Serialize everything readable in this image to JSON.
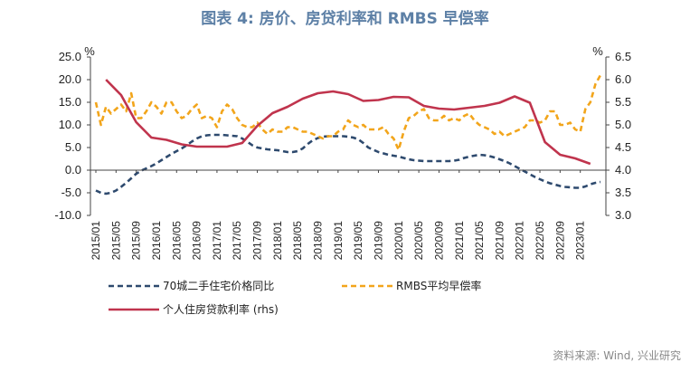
{
  "chart_data": {
    "type": "line",
    "title": "图表 4:  房价、房贷利率和 RMBS 早偿率",
    "source": "资料来源: Wind, 兴业研究",
    "left_unit": "%",
    "right_unit": "%",
    "ylim_left": [
      -10,
      25
    ],
    "ylim_right": [
      3.0,
      6.5
    ],
    "yticks_left": [
      "25.0",
      "20.0",
      "15.0",
      "10.0",
      "5.0",
      "0.0",
      "-5.0",
      "-10.0"
    ],
    "yticks_right": [
      "6.5",
      "6.0",
      "5.5",
      "5.0",
      "4.5",
      "4.0",
      "3.5",
      "3.0"
    ],
    "x_start": "2015-01",
    "x_end": "2023-05",
    "x_ticks": [
      "2015/01",
      "2015/05",
      "2015/09",
      "2016/01",
      "2016/05",
      "2016/09",
      "2017/01",
      "2017/05",
      "2017/09",
      "2018/01",
      "2018/05",
      "2018/09",
      "2019/01",
      "2019/05",
      "2019/09",
      "2020/01",
      "2020/05",
      "2020/09",
      "2021/01",
      "2021/05",
      "2021/09",
      "2022/01",
      "2022/05",
      "2022/09",
      "2023/01"
    ],
    "series": [
      {
        "name": "70城二手住宅价格同比",
        "axis": "left",
        "style": "dashed",
        "color": "#2e4a6e",
        "points": [
          [
            "2015-01",
            -4.5
          ],
          [
            "2015-02",
            -5.0
          ],
          [
            "2015-03",
            -5.2
          ],
          [
            "2015-04",
            -5.0
          ],
          [
            "2015-05",
            -4.5
          ],
          [
            "2015-06",
            -3.7
          ],
          [
            "2015-07",
            -2.8
          ],
          [
            "2015-08",
            -1.8
          ],
          [
            "2015-09",
            -0.8
          ],
          [
            "2015-10",
            -0.1
          ],
          [
            "2015-11",
            0.4
          ],
          [
            "2015-12",
            0.9
          ],
          [
            "2016-01",
            1.5
          ],
          [
            "2016-02",
            2.2
          ],
          [
            "2016-03",
            2.9
          ],
          [
            "2016-04",
            3.6
          ],
          [
            "2016-05",
            4.2
          ],
          [
            "2016-06",
            4.8
          ],
          [
            "2016-07",
            5.5
          ],
          [
            "2016-08",
            6.3
          ],
          [
            "2016-09",
            7.0
          ],
          [
            "2016-10",
            7.5
          ],
          [
            "2016-11",
            7.7
          ],
          [
            "2016-12",
            7.8
          ],
          [
            "2017-01",
            7.8
          ],
          [
            "2017-02",
            7.8
          ],
          [
            "2017-03",
            7.7
          ],
          [
            "2017-04",
            7.6
          ],
          [
            "2017-05",
            7.5
          ],
          [
            "2017-06",
            7.0
          ],
          [
            "2017-07",
            6.3
          ],
          [
            "2017-08",
            5.5
          ],
          [
            "2017-09",
            5.0
          ],
          [
            "2017-10",
            4.8
          ],
          [
            "2017-11",
            4.6
          ],
          [
            "2017-12",
            4.5
          ],
          [
            "2018-01",
            4.4
          ],
          [
            "2018-02",
            4.2
          ],
          [
            "2018-03",
            4.0
          ],
          [
            "2018-04",
            4.0
          ],
          [
            "2018-05",
            4.2
          ],
          [
            "2018-06",
            4.8
          ],
          [
            "2018-07",
            5.8
          ],
          [
            "2018-08",
            6.6
          ],
          [
            "2018-09",
            7.1
          ],
          [
            "2018-10",
            7.4
          ],
          [
            "2018-11",
            7.5
          ],
          [
            "2018-12",
            7.5
          ],
          [
            "2019-01",
            7.5
          ],
          [
            "2019-02",
            7.5
          ],
          [
            "2019-03",
            7.4
          ],
          [
            "2019-04",
            7.2
          ],
          [
            "2019-05",
            6.8
          ],
          [
            "2019-06",
            6.0
          ],
          [
            "2019-07",
            5.0
          ],
          [
            "2019-08",
            4.5
          ],
          [
            "2019-09",
            4.0
          ],
          [
            "2019-10",
            3.7
          ],
          [
            "2019-11",
            3.4
          ],
          [
            "2019-12",
            3.2
          ],
          [
            "2020-01",
            3.0
          ],
          [
            "2020-02",
            2.7
          ],
          [
            "2020-03",
            2.4
          ],
          [
            "2020-04",
            2.2
          ],
          [
            "2020-05",
            2.1
          ],
          [
            "2020-06",
            2.0
          ],
          [
            "2020-07",
            2.0
          ],
          [
            "2020-08",
            2.0
          ],
          [
            "2020-09",
            2.0
          ],
          [
            "2020-10",
            2.0
          ],
          [
            "2020-11",
            2.0
          ],
          [
            "2020-12",
            2.1
          ],
          [
            "2021-01",
            2.3
          ],
          [
            "2021-02",
            2.7
          ],
          [
            "2021-03",
            3.0
          ],
          [
            "2021-04",
            3.2
          ],
          [
            "2021-05",
            3.4
          ],
          [
            "2021-06",
            3.3
          ],
          [
            "2021-07",
            3.1
          ],
          [
            "2021-08",
            2.8
          ],
          [
            "2021-09",
            2.4
          ],
          [
            "2021-10",
            2.0
          ],
          [
            "2021-11",
            1.5
          ],
          [
            "2021-12",
            0.9
          ],
          [
            "2022-01",
            0.3
          ],
          [
            "2022-02",
            -0.3
          ],
          [
            "2022-03",
            -0.9
          ],
          [
            "2022-04",
            -1.5
          ],
          [
            "2022-05",
            -2.0
          ],
          [
            "2022-06",
            -2.5
          ],
          [
            "2022-07",
            -2.9
          ],
          [
            "2022-08",
            -3.2
          ],
          [
            "2022-09",
            -3.5
          ],
          [
            "2022-10",
            -3.7
          ],
          [
            "2022-11",
            -3.8
          ],
          [
            "2022-12",
            -3.9
          ],
          [
            "2023-01",
            -3.9
          ],
          [
            "2023-02",
            -3.6
          ],
          [
            "2023-03",
            -3.1
          ],
          [
            "2023-04",
            -2.8
          ],
          [
            "2023-05",
            -2.6
          ]
        ]
      },
      {
        "name": "RMBS平均早偿率",
        "axis": "left",
        "style": "dashed",
        "color": "#f2a51b",
        "points": [
          [
            "2015-01",
            15.0
          ],
          [
            "2015-02",
            10.0
          ],
          [
            "2015-03",
            14.0
          ],
          [
            "2015-04",
            12.5
          ],
          [
            "2015-05",
            13.5
          ],
          [
            "2015-06",
            14.5
          ],
          [
            "2015-07",
            13.0
          ],
          [
            "2015-08",
            17.0
          ],
          [
            "2015-09",
            11.5
          ],
          [
            "2015-10",
            11.5
          ],
          [
            "2015-11",
            13.0
          ],
          [
            "2015-12",
            15.0
          ],
          [
            "2016-01",
            14.0
          ],
          [
            "2016-02",
            12.5
          ],
          [
            "2016-03",
            15.0
          ],
          [
            "2016-04",
            15.0
          ],
          [
            "2016-05",
            13.0
          ],
          [
            "2016-06",
            11.5
          ],
          [
            "2016-07",
            12.0
          ],
          [
            "2016-08",
            13.5
          ],
          [
            "2016-09",
            14.5
          ],
          [
            "2016-10",
            11.5
          ],
          [
            "2016-11",
            12.0
          ],
          [
            "2016-12",
            11.5
          ],
          [
            "2017-01",
            9.5
          ],
          [
            "2017-02",
            13.0
          ],
          [
            "2017-03",
            14.5
          ],
          [
            "2017-04",
            13.5
          ],
          [
            "2017-05",
            11.5
          ],
          [
            "2017-06",
            10.0
          ],
          [
            "2017-07",
            9.5
          ],
          [
            "2017-08",
            9.5
          ],
          [
            "2017-09",
            10.5
          ],
          [
            "2017-10",
            9.0
          ],
          [
            "2017-11",
            8.0
          ],
          [
            "2017-12",
            9.0
          ],
          [
            "2018-01",
            8.5
          ],
          [
            "2018-02",
            8.5
          ],
          [
            "2018-03",
            9.5
          ],
          [
            "2018-04",
            9.5
          ],
          [
            "2018-05",
            9.0
          ],
          [
            "2018-06",
            8.5
          ],
          [
            "2018-07",
            8.5
          ],
          [
            "2018-08",
            8.0
          ],
          [
            "2018-09",
            7.5
          ],
          [
            "2018-10",
            7.0
          ],
          [
            "2018-11",
            7.5
          ],
          [
            "2018-12",
            7.5
          ],
          [
            "2019-01",
            8.5
          ],
          [
            "2019-02",
            9.0
          ],
          [
            "2019-03",
            11.0
          ],
          [
            "2019-04",
            10.0
          ],
          [
            "2019-05",
            9.5
          ],
          [
            "2019-06",
            10.0
          ],
          [
            "2019-07",
            9.0
          ],
          [
            "2019-08",
            9.0
          ],
          [
            "2019-09",
            9.0
          ],
          [
            "2019-10",
            9.5
          ],
          [
            "2019-11",
            8.0
          ],
          [
            "2019-12",
            7.0
          ],
          [
            "2020-01",
            4.5
          ],
          [
            "2020-02",
            8.5
          ],
          [
            "2020-03",
            11.5
          ],
          [
            "2020-04",
            12.0
          ],
          [
            "2020-05",
            13.0
          ],
          [
            "2020-06",
            13.5
          ],
          [
            "2020-07",
            11.5
          ],
          [
            "2020-08",
            11.0
          ],
          [
            "2020-09",
            11.0
          ],
          [
            "2020-10",
            12.0
          ],
          [
            "2020-11",
            11.0
          ],
          [
            "2020-12",
            11.5
          ],
          [
            "2021-01",
            11.0
          ],
          [
            "2021-02",
            12.0
          ],
          [
            "2021-03",
            12.5
          ],
          [
            "2021-04",
            11.0
          ],
          [
            "2021-05",
            10.0
          ],
          [
            "2021-06",
            9.5
          ],
          [
            "2021-07",
            9.0
          ],
          [
            "2021-08",
            8.0
          ],
          [
            "2021-09",
            8.5
          ],
          [
            "2021-10",
            7.5
          ],
          [
            "2021-11",
            8.0
          ],
          [
            "2021-12",
            8.5
          ],
          [
            "2022-01",
            9.0
          ],
          [
            "2022-02",
            9.5
          ],
          [
            "2022-03",
            11.0
          ],
          [
            "2022-04",
            11.0
          ],
          [
            "2022-05",
            10.5
          ],
          [
            "2022-06",
            11.0
          ],
          [
            "2022-07",
            13.0
          ],
          [
            "2022-08",
            13.0
          ],
          [
            "2022-09",
            10.0
          ],
          [
            "2022-10",
            10.0
          ],
          [
            "2022-11",
            10.5
          ],
          [
            "2022-12",
            9.0
          ],
          [
            "2023-01",
            8.5
          ],
          [
            "2023-02",
            13.5
          ],
          [
            "2023-03",
            15.0
          ],
          [
            "2023-04",
            19.0
          ],
          [
            "2023-05",
            21.0
          ]
        ]
      },
      {
        "name": "个人住房贷款利率 (rhs)",
        "axis": "right",
        "style": "solid",
        "color": "#c0344d",
        "points": [
          [
            "2015-03",
            6.0
          ],
          [
            "2015-06",
            5.66
          ],
          [
            "2015-09",
            5.06
          ],
          [
            "2015-12",
            4.72
          ],
          [
            "2016-03",
            4.67
          ],
          [
            "2016-06",
            4.57
          ],
          [
            "2016-09",
            4.52
          ],
          [
            "2016-12",
            4.52
          ],
          [
            "2017-03",
            4.52
          ],
          [
            "2017-06",
            4.6
          ],
          [
            "2017-09",
            4.98
          ],
          [
            "2017-12",
            5.26
          ],
          [
            "2018-03",
            5.4
          ],
          [
            "2018-06",
            5.58
          ],
          [
            "2018-09",
            5.7
          ],
          [
            "2018-12",
            5.74
          ],
          [
            "2019-03",
            5.68
          ],
          [
            "2019-06",
            5.53
          ],
          [
            "2019-09",
            5.55
          ],
          [
            "2019-12",
            5.62
          ],
          [
            "2020-03",
            5.61
          ],
          [
            "2020-06",
            5.42
          ],
          [
            "2020-09",
            5.36
          ],
          [
            "2020-12",
            5.34
          ],
          [
            "2021-03",
            5.38
          ],
          [
            "2021-06",
            5.42
          ],
          [
            "2021-09",
            5.49
          ],
          [
            "2021-12",
            5.63
          ],
          [
            "2022-03",
            5.49
          ],
          [
            "2022-06",
            4.62
          ],
          [
            "2022-09",
            4.34
          ],
          [
            "2022-12",
            4.26
          ],
          [
            "2023-03",
            4.14
          ]
        ]
      }
    ]
  }
}
